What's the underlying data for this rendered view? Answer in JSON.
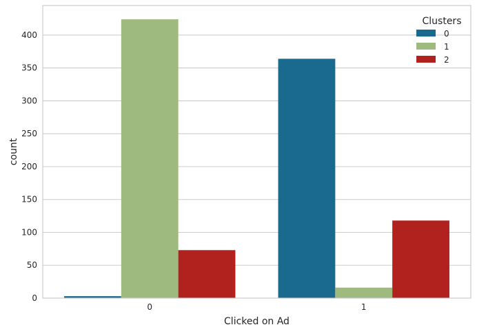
{
  "chart_data": {
    "type": "bar",
    "title": "",
    "xlabel": "Clicked on Ad",
    "ylabel": "count",
    "categories": [
      "0",
      "1"
    ],
    "ylim": [
      0,
      445
    ],
    "yticks": [
      0,
      50,
      100,
      150,
      200,
      250,
      300,
      350,
      400
    ],
    "grid": true,
    "legend": {
      "title": "Clusters",
      "placement": "top-right"
    },
    "series": [
      {
        "name": "0",
        "color": "#1a6a8f",
        "values": [
          3,
          364
        ]
      },
      {
        "name": "1",
        "color": "#9fba7f",
        "values": [
          424,
          16
        ]
      },
      {
        "name": "2",
        "color": "#b1221f",
        "values": [
          73,
          118
        ]
      }
    ]
  }
}
